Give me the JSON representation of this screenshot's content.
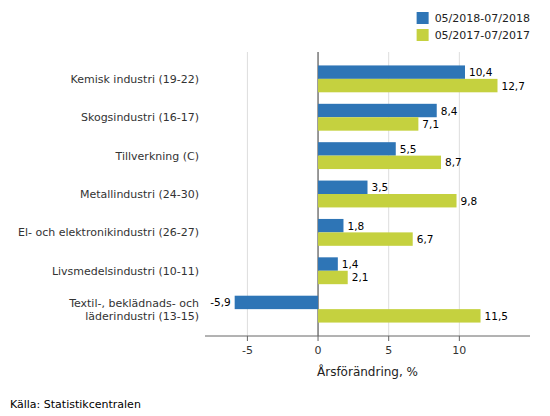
{
  "chart_data": {
    "type": "bar",
    "orientation": "horizontal",
    "categories": [
      "Kemisk industri (19-22)",
      "Skogsindustri (16-17)",
      "Tillverkning (C)",
      "Metallindustri (24-30)",
      "El- och elektronikindustri (26-27)",
      "Livsmedelsindustri (10-11)",
      "Textil-, beklädnads- och\nläderindustri (13-15)"
    ],
    "series": [
      {
        "name": "05/2018-07/2018",
        "color": "#2E75B6",
        "values": [
          10.4,
          8.4,
          5.5,
          3.5,
          1.8,
          1.4,
          -5.9
        ],
        "value_labels": [
          "10,4",
          "8,4",
          "5,5",
          "3,5",
          "1,8",
          "1,4",
          "-5,9"
        ]
      },
      {
        "name": "05/2017-07/2017",
        "color": "#C5D13F",
        "values": [
          12.7,
          7.1,
          8.7,
          9.8,
          6.7,
          2.1,
          11.5
        ],
        "value_labels": [
          "12,7",
          "7,1",
          "8,7",
          "9,8",
          "6,7",
          "2,1",
          "11,5"
        ]
      }
    ],
    "xlabel": "Årsförändring, %",
    "xlim": [
      -8,
      15
    ],
    "xticks": [
      -5,
      0,
      5,
      10
    ],
    "grid": true,
    "legend": "top-right",
    "data_labels": true,
    "annotations": [
      "Källa: Statistikcentralen"
    ]
  }
}
